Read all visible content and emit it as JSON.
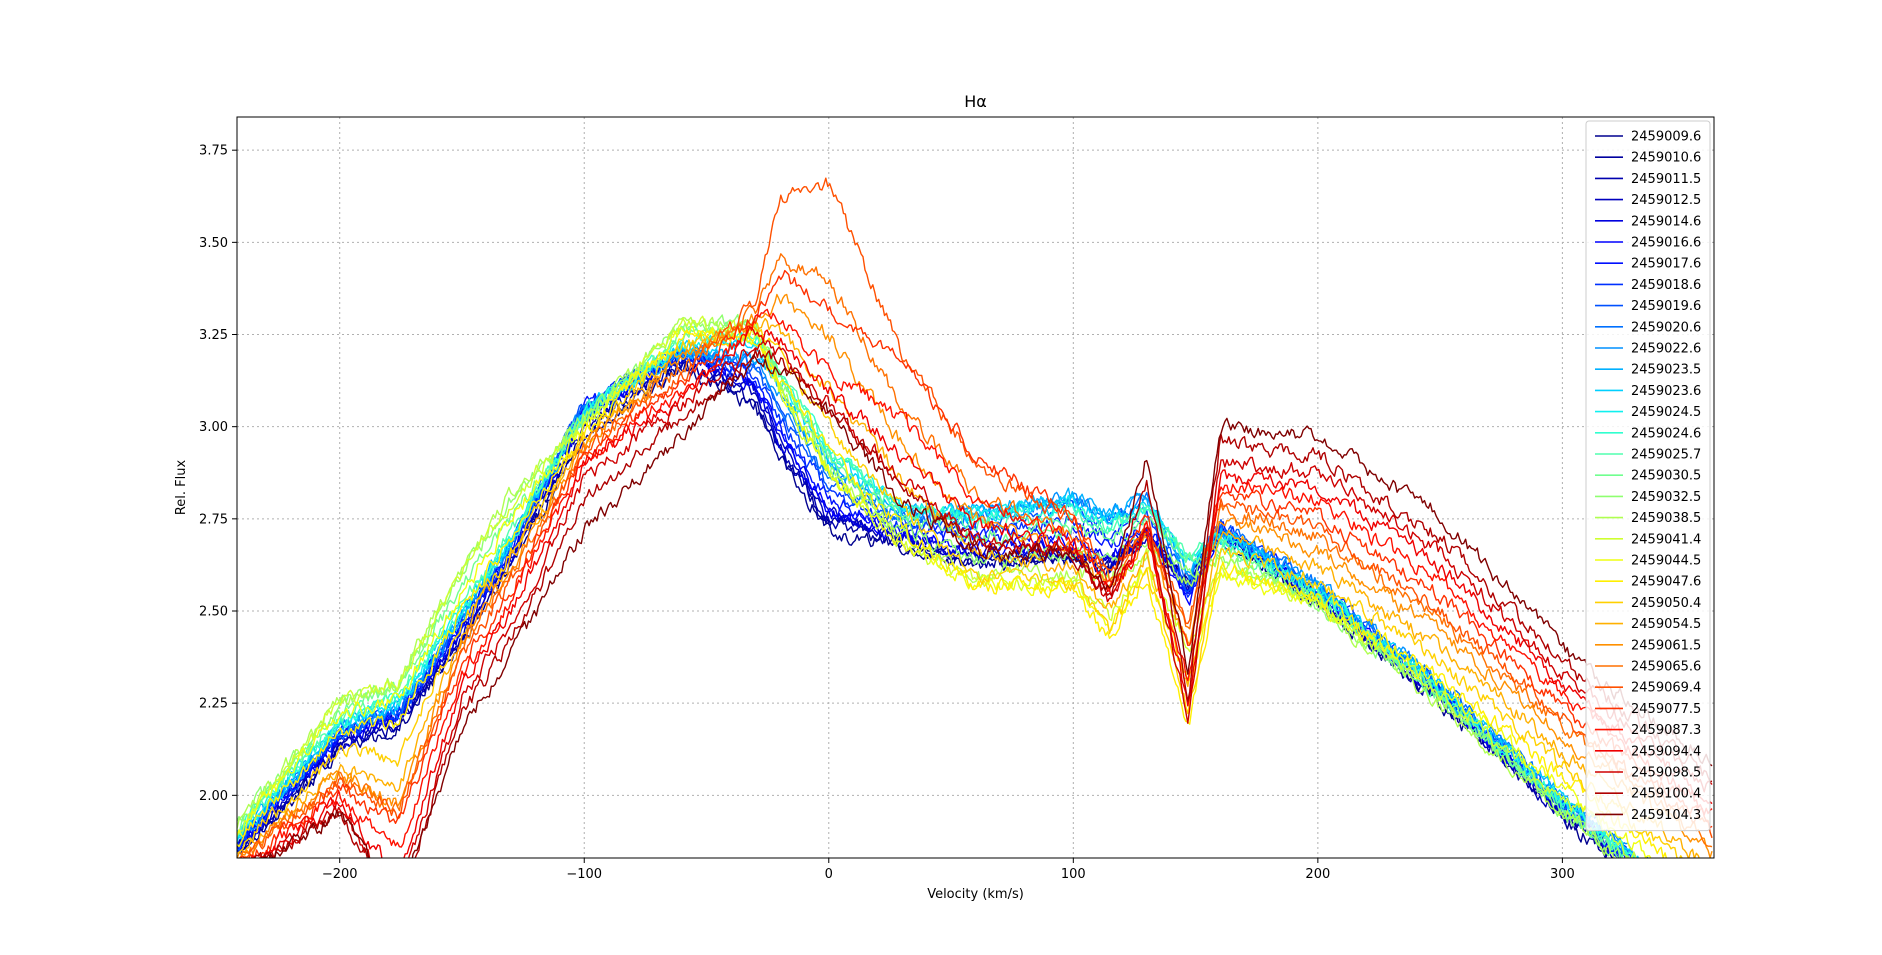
{
  "chart_data": {
    "type": "line",
    "title": "Hα",
    "xlabel": "Velocity (km/s)",
    "ylabel": "Rel. Flux",
    "xlim": [
      -242,
      362
    ],
    "ylim": [
      1.83,
      3.84
    ],
    "xticks": [
      -200,
      -100,
      0,
      100,
      200,
      300
    ],
    "xtick_labels": [
      "−200",
      "−100",
      "0",
      "100",
      "200",
      "300"
    ],
    "yticks": [
      2.0,
      2.25,
      2.5,
      2.75,
      3.0,
      3.25,
      3.5,
      3.75
    ],
    "ytick_labels": [
      "2.00",
      "2.25",
      "2.50",
      "2.75",
      "3.00",
      "3.25",
      "3.50",
      "3.75"
    ],
    "grid": true,
    "legend_position": "top-right",
    "colormap": "jet",
    "shape_x": [
      -242,
      -200,
      -176,
      -150,
      -130,
      -100,
      -60,
      -30,
      -20,
      0,
      30,
      60,
      100,
      115,
      130,
      147,
      160,
      200,
      250,
      300,
      330,
      362
    ],
    "series": [
      {
        "name": "2459009.6",
        "color": "#00008f",
        "values": [
          1.84,
          2.12,
          2.18,
          2.42,
          2.62,
          2.98,
          3.16,
          3.05,
          2.92,
          2.72,
          2.67,
          2.62,
          2.64,
          2.62,
          2.69,
          2.6,
          2.7,
          2.52,
          2.25,
          1.94,
          1.78,
          1.62
        ]
      },
      {
        "name": "2459010.6",
        "color": "#00009f",
        "values": [
          1.84,
          2.13,
          2.19,
          2.43,
          2.63,
          2.99,
          3.17,
          3.07,
          2.93,
          2.74,
          2.68,
          2.63,
          2.64,
          2.61,
          2.7,
          2.58,
          2.71,
          2.53,
          2.26,
          1.95,
          1.79,
          1.63
        ]
      },
      {
        "name": "2459011.5",
        "color": "#0000af",
        "values": [
          1.85,
          2.14,
          2.2,
          2.44,
          2.64,
          3.0,
          3.18,
          3.08,
          2.94,
          2.75,
          2.69,
          2.64,
          2.65,
          2.62,
          2.71,
          2.56,
          2.71,
          2.53,
          2.26,
          1.95,
          1.79,
          1.63
        ]
      },
      {
        "name": "2459012.5",
        "color": "#0000bf",
        "values": [
          1.85,
          2.15,
          2.2,
          2.45,
          2.65,
          3.02,
          3.19,
          3.1,
          2.96,
          2.76,
          2.7,
          2.65,
          2.66,
          2.63,
          2.71,
          2.55,
          2.72,
          2.54,
          2.27,
          1.96,
          1.8,
          1.64
        ]
      },
      {
        "name": "2459014.6",
        "color": "#0000df",
        "values": [
          1.86,
          2.15,
          2.21,
          2.45,
          2.65,
          3.03,
          3.19,
          3.11,
          2.97,
          2.77,
          2.7,
          2.66,
          2.67,
          2.64,
          2.72,
          2.54,
          2.72,
          2.54,
          2.27,
          1.96,
          1.8,
          1.64
        ]
      },
      {
        "name": "2459016.6",
        "color": "#0000ff",
        "values": [
          1.86,
          2.16,
          2.21,
          2.46,
          2.66,
          3.04,
          3.2,
          3.12,
          2.98,
          2.78,
          2.71,
          2.67,
          2.69,
          2.65,
          2.72,
          2.52,
          2.72,
          2.55,
          2.28,
          1.97,
          1.81,
          1.65
        ]
      },
      {
        "name": "2459017.6",
        "color": "#0010ff",
        "values": [
          1.86,
          2.16,
          2.22,
          2.46,
          2.66,
          3.05,
          3.2,
          3.13,
          3.0,
          2.8,
          2.72,
          2.7,
          2.72,
          2.68,
          2.74,
          2.54,
          2.73,
          2.55,
          2.28,
          1.97,
          1.81,
          1.65
        ]
      },
      {
        "name": "2459018.6",
        "color": "#0030ff",
        "values": [
          1.87,
          2.17,
          2.22,
          2.47,
          2.67,
          3.06,
          3.21,
          3.14,
          3.02,
          2.82,
          2.73,
          2.72,
          2.75,
          2.7,
          2.76,
          2.55,
          2.73,
          2.56,
          2.29,
          1.98,
          1.82,
          1.66
        ]
      },
      {
        "name": "2459019.6",
        "color": "#0050ff",
        "values": [
          1.87,
          2.17,
          2.23,
          2.47,
          2.67,
          3.06,
          3.21,
          3.16,
          3.04,
          2.84,
          2.74,
          2.74,
          2.78,
          2.73,
          2.78,
          2.56,
          2.73,
          2.56,
          2.29,
          1.98,
          1.82,
          1.66
        ]
      },
      {
        "name": "2459020.6",
        "color": "#0070ff",
        "values": [
          1.88,
          2.18,
          2.23,
          2.48,
          2.68,
          3.05,
          3.2,
          3.17,
          3.06,
          2.86,
          2.75,
          2.76,
          2.8,
          2.75,
          2.8,
          2.58,
          2.73,
          2.57,
          2.3,
          1.99,
          1.83,
          1.67
        ]
      },
      {
        "name": "2459022.6",
        "color": "#0090ff",
        "values": [
          1.88,
          2.18,
          2.24,
          2.48,
          2.68,
          3.05,
          3.2,
          3.18,
          3.08,
          2.88,
          2.76,
          2.77,
          2.8,
          2.76,
          2.8,
          2.6,
          2.72,
          2.57,
          2.3,
          1.99,
          1.83,
          1.67
        ]
      },
      {
        "name": "2459023.5",
        "color": "#00b0ff",
        "values": [
          1.88,
          2.19,
          2.24,
          2.49,
          2.69,
          3.04,
          3.2,
          3.2,
          3.1,
          2.9,
          2.77,
          2.77,
          2.81,
          2.76,
          2.8,
          2.61,
          2.72,
          2.56,
          2.29,
          1.99,
          1.83,
          1.67
        ]
      },
      {
        "name": "2459023.6",
        "color": "#00d0ff",
        "values": [
          1.89,
          2.19,
          2.25,
          2.49,
          2.69,
          3.04,
          3.21,
          3.22,
          3.12,
          2.92,
          2.78,
          2.76,
          2.8,
          2.75,
          2.79,
          2.63,
          2.71,
          2.56,
          2.29,
          1.99,
          1.83,
          1.67
        ]
      },
      {
        "name": "2459024.5",
        "color": "#10f0ef",
        "values": [
          1.89,
          2.2,
          2.25,
          2.5,
          2.7,
          3.04,
          3.22,
          3.24,
          3.13,
          2.93,
          2.78,
          2.76,
          2.79,
          2.74,
          2.79,
          2.63,
          2.7,
          2.55,
          2.28,
          1.98,
          1.82,
          1.66
        ]
      },
      {
        "name": "2459024.6",
        "color": "#30ffcf",
        "values": [
          1.9,
          2.2,
          2.26,
          2.5,
          2.7,
          3.04,
          3.23,
          3.25,
          3.14,
          2.94,
          2.78,
          2.75,
          2.78,
          2.73,
          2.78,
          2.64,
          2.7,
          2.55,
          2.28,
          1.98,
          1.82,
          1.66
        ]
      },
      {
        "name": "2459025.7",
        "color": "#50ffaf",
        "values": [
          1.9,
          2.21,
          2.27,
          2.52,
          2.72,
          3.03,
          3.24,
          3.26,
          3.14,
          2.94,
          2.77,
          2.74,
          2.76,
          2.72,
          2.77,
          2.65,
          2.69,
          2.54,
          2.27,
          1.97,
          1.81,
          1.65
        ]
      },
      {
        "name": "2459030.5",
        "color": "#70ff8f",
        "values": [
          1.91,
          2.23,
          2.29,
          2.56,
          2.76,
          3.02,
          3.25,
          3.27,
          3.13,
          2.92,
          2.75,
          2.7,
          2.72,
          2.7,
          2.74,
          2.64,
          2.68,
          2.53,
          2.27,
          1.97,
          1.81,
          1.65
        ]
      },
      {
        "name": "2459032.5",
        "color": "#8fff70",
        "values": [
          1.92,
          2.25,
          2.3,
          2.6,
          2.8,
          3.02,
          3.27,
          3.28,
          3.12,
          2.9,
          2.72,
          2.64,
          2.66,
          2.65,
          2.7,
          2.6,
          2.66,
          2.52,
          2.26,
          1.96,
          1.8,
          1.64
        ]
      },
      {
        "name": "2459038.5",
        "color": "#afff50",
        "values": [
          1.92,
          2.26,
          2.31,
          2.62,
          2.82,
          3.02,
          3.28,
          3.28,
          3.11,
          2.88,
          2.7,
          2.6,
          2.6,
          2.6,
          2.66,
          2.58,
          2.64,
          2.51,
          2.25,
          1.96,
          1.8,
          1.64
        ]
      },
      {
        "name": "2459041.4",
        "color": "#cfff30",
        "values": [
          1.91,
          2.25,
          2.3,
          2.6,
          2.8,
          3.01,
          3.28,
          3.26,
          3.1,
          2.87,
          2.68,
          2.58,
          2.58,
          2.48,
          2.64,
          2.4,
          2.62,
          2.52,
          2.28,
          1.99,
          1.83,
          1.67
        ]
      },
      {
        "name": "2459044.5",
        "color": "#efff10",
        "values": [
          1.89,
          2.22,
          2.26,
          2.55,
          2.75,
          3.0,
          3.26,
          3.24,
          3.1,
          2.88,
          2.68,
          2.57,
          2.57,
          2.45,
          2.62,
          2.3,
          2.6,
          2.52,
          2.3,
          2.02,
          1.86,
          1.7
        ]
      },
      {
        "name": "2459047.6",
        "color": "#ffef00",
        "values": [
          1.87,
          2.18,
          2.2,
          2.5,
          2.7,
          2.98,
          3.24,
          3.24,
          3.14,
          2.93,
          2.72,
          2.57,
          2.56,
          2.42,
          2.6,
          2.18,
          2.62,
          2.54,
          2.32,
          2.05,
          1.89,
          1.73
        ]
      },
      {
        "name": "2459050.4",
        "color": "#ffd000",
        "values": [
          1.85,
          2.12,
          2.1,
          2.46,
          2.66,
          2.97,
          3.22,
          3.26,
          3.2,
          3.0,
          2.78,
          2.6,
          2.58,
          2.44,
          2.62,
          2.22,
          2.66,
          2.58,
          2.36,
          2.08,
          1.92,
          1.76
        ]
      },
      {
        "name": "2459054.5",
        "color": "#ffb000",
        "values": [
          1.83,
          2.08,
          2.02,
          2.44,
          2.64,
          2.96,
          3.2,
          3.28,
          3.26,
          3.1,
          2.86,
          2.66,
          2.62,
          2.5,
          2.66,
          2.3,
          2.72,
          2.62,
          2.4,
          2.12,
          1.96,
          1.8
        ]
      },
      {
        "name": "2459061.5",
        "color": "#ff9000",
        "values": [
          1.82,
          2.06,
          1.98,
          2.42,
          2.62,
          2.95,
          3.18,
          3.3,
          3.35,
          3.25,
          2.95,
          2.75,
          2.66,
          2.55,
          2.7,
          2.4,
          2.76,
          2.66,
          2.45,
          2.16,
          2.0,
          1.84
        ]
      },
      {
        "name": "2459065.6",
        "color": "#ff7000",
        "values": [
          1.82,
          2.05,
          1.96,
          2.4,
          2.6,
          2.94,
          3.16,
          3.32,
          3.45,
          3.4,
          3.05,
          2.82,
          2.7,
          2.58,
          2.72,
          2.45,
          2.78,
          2.7,
          2.48,
          2.19,
          2.03,
          1.87
        ]
      },
      {
        "name": "2459069.4",
        "color": "#ff5000",
        "values": [
          1.81,
          2.04,
          1.95,
          2.38,
          2.58,
          2.93,
          3.14,
          3.34,
          3.62,
          3.66,
          3.2,
          2.9,
          2.74,
          2.6,
          2.74,
          2.46,
          2.8,
          2.72,
          2.5,
          2.21,
          2.05,
          1.89
        ]
      },
      {
        "name": "2459077.5",
        "color": "#ff3000",
        "values": [
          1.8,
          2.02,
          1.92,
          2.36,
          2.56,
          2.92,
          3.12,
          3.3,
          3.42,
          3.32,
          3.18,
          2.92,
          2.76,
          2.58,
          2.76,
          2.4,
          2.82,
          2.76,
          2.54,
          2.24,
          2.08,
          1.92
        ]
      },
      {
        "name": "2459087.3",
        "color": "#ff1000",
        "values": [
          1.8,
          2.0,
          1.85,
          2.33,
          2.53,
          2.91,
          3.1,
          3.28,
          3.3,
          3.14,
          3.02,
          2.8,
          2.7,
          2.56,
          2.72,
          2.3,
          2.84,
          2.8,
          2.58,
          2.27,
          2.11,
          1.95
        ]
      },
      {
        "name": "2459094.4",
        "color": "#ef0000",
        "values": [
          1.79,
          1.98,
          1.78,
          2.3,
          2.5,
          2.9,
          3.08,
          3.26,
          3.24,
          3.1,
          2.92,
          2.74,
          2.68,
          2.54,
          2.7,
          2.25,
          2.86,
          2.84,
          2.62,
          2.3,
          2.14,
          1.98
        ]
      },
      {
        "name": "2459098.5",
        "color": "#cf0000",
        "values": [
          1.78,
          1.96,
          1.72,
          2.26,
          2.46,
          2.86,
          3.06,
          3.22,
          3.2,
          3.06,
          2.86,
          2.7,
          2.66,
          2.52,
          2.74,
          2.2,
          2.9,
          2.88,
          2.66,
          2.33,
          2.17,
          2.01
        ]
      },
      {
        "name": "2459100.4",
        "color": "#af0000",
        "values": [
          1.78,
          1.95,
          1.7,
          2.22,
          2.42,
          2.8,
          3.03,
          3.2,
          3.18,
          3.05,
          2.84,
          2.68,
          2.66,
          2.54,
          2.86,
          2.28,
          2.96,
          2.92,
          2.7,
          2.36,
          2.2,
          2.04
        ]
      },
      {
        "name": "2459104.3",
        "color": "#800000",
        "values": [
          1.78,
          1.95,
          1.72,
          2.18,
          2.38,
          2.72,
          2.98,
          3.18,
          3.16,
          3.04,
          2.8,
          2.66,
          2.66,
          2.56,
          2.92,
          2.35,
          3.0,
          2.97,
          2.76,
          2.4,
          2.24,
          2.08
        ]
      }
    ]
  }
}
